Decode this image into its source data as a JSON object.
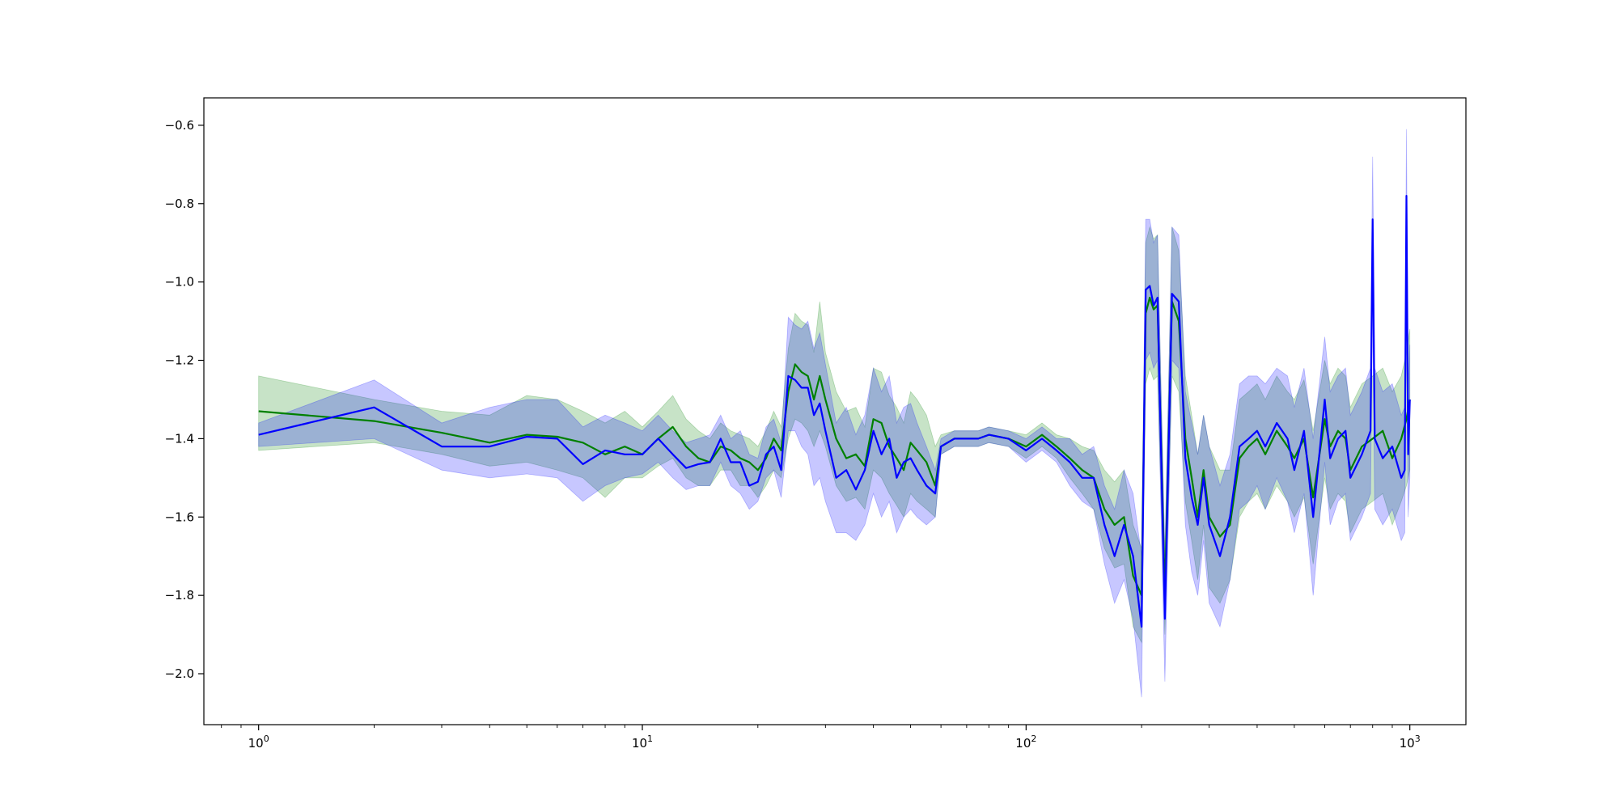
{
  "chart_data": {
    "type": "line",
    "title": "",
    "xlabel": "",
    "ylabel": "",
    "xscale": "log",
    "xlim": [
      0.72,
      1400
    ],
    "ylim": [
      -2.13,
      -0.53
    ],
    "grid": false,
    "legend": "none",
    "x_ticks": [
      {
        "value": 1,
        "base": "10",
        "exp": "0"
      },
      {
        "value": 10,
        "base": "10",
        "exp": "1"
      },
      {
        "value": 100,
        "base": "10",
        "exp": "2"
      },
      {
        "value": 1000,
        "base": "10",
        "exp": "3"
      }
    ],
    "y_ticks": [
      {
        "value": -0.6,
        "label": "−0.6"
      },
      {
        "value": -0.8,
        "label": "−0.8"
      },
      {
        "value": -1.0,
        "label": "−1.0"
      },
      {
        "value": -1.2,
        "label": "−1.2"
      },
      {
        "value": -1.4,
        "label": "−1.4"
      },
      {
        "value": -1.6,
        "label": "−1.6"
      },
      {
        "value": -1.8,
        "label": "−1.8"
      },
      {
        "value": -2.0,
        "label": "−2.0"
      }
    ],
    "series": [
      {
        "color": "#008000",
        "band_color": "#008000",
        "x": [
          1,
          2,
          3,
          4,
          5,
          6,
          7,
          8,
          9,
          10,
          11,
          12,
          13,
          14,
          15,
          16,
          17,
          18,
          19,
          20,
          21,
          22,
          23,
          24,
          25,
          26,
          27,
          28,
          29,
          30,
          32,
          34,
          36,
          38,
          40,
          42,
          44,
          46,
          48,
          50,
          52,
          55,
          58,
          60,
          65,
          70,
          75,
          80,
          90,
          100,
          110,
          120,
          130,
          140,
          150,
          160,
          170,
          180,
          190,
          200,
          205,
          210,
          215,
          220,
          230,
          240,
          250,
          260,
          270,
          280,
          290,
          300,
          320,
          340,
          360,
          380,
          400,
          420,
          450,
          480,
          500,
          530,
          560,
          600,
          620,
          650,
          680,
          700,
          750,
          800,
          850,
          900,
          950,
          980,
          1000
        ],
        "y": [
          -1.33,
          -1.355,
          -1.385,
          -1.41,
          -1.39,
          -1.395,
          -1.41,
          -1.44,
          -1.42,
          -1.44,
          -1.4,
          -1.37,
          -1.42,
          -1.45,
          -1.46,
          -1.42,
          -1.43,
          -1.45,
          -1.46,
          -1.48,
          -1.45,
          -1.4,
          -1.43,
          -1.28,
          -1.21,
          -1.23,
          -1.24,
          -1.3,
          -1.24,
          -1.3,
          -1.4,
          -1.45,
          -1.44,
          -1.47,
          -1.35,
          -1.36,
          -1.42,
          -1.45,
          -1.48,
          -1.41,
          -1.43,
          -1.46,
          -1.52,
          -1.42,
          -1.4,
          -1.4,
          -1.4,
          -1.39,
          -1.4,
          -1.42,
          -1.39,
          -1.42,
          -1.45,
          -1.48,
          -1.5,
          -1.58,
          -1.62,
          -1.6,
          -1.75,
          -1.8,
          -1.08,
          -1.04,
          -1.07,
          -1.06,
          -1.8,
          -1.05,
          -1.1,
          -1.4,
          -1.5,
          -1.6,
          -1.48,
          -1.6,
          -1.65,
          -1.62,
          -1.45,
          -1.42,
          -1.4,
          -1.44,
          -1.38,
          -1.42,
          -1.45,
          -1.4,
          -1.55,
          -1.35,
          -1.42,
          -1.38,
          -1.4,
          -1.48,
          -1.42,
          -1.4,
          -1.38,
          -1.45,
          -1.4,
          -1.35,
          -1.3
        ],
        "lower": [
          -1.43,
          -1.41,
          -1.44,
          -1.47,
          -1.46,
          -1.48,
          -1.5,
          -1.55,
          -1.5,
          -1.5,
          -1.47,
          -1.45,
          -1.5,
          -1.52,
          -1.52,
          -1.48,
          -1.48,
          -1.52,
          -1.52,
          -1.55,
          -1.52,
          -1.48,
          -1.5,
          -1.4,
          -1.35,
          -1.36,
          -1.38,
          -1.42,
          -1.38,
          -1.42,
          -1.52,
          -1.56,
          -1.55,
          -1.58,
          -1.48,
          -1.5,
          -1.54,
          -1.57,
          -1.6,
          -1.54,
          -1.56,
          -1.58,
          -1.6,
          -1.44,
          -1.42,
          -1.42,
          -1.42,
          -1.41,
          -1.42,
          -1.45,
          -1.42,
          -1.45,
          -1.5,
          -1.54,
          -1.58,
          -1.68,
          -1.73,
          -1.72,
          -1.88,
          -1.92,
          -1.26,
          -1.22,
          -1.25,
          -1.24,
          -1.9,
          -1.24,
          -1.28,
          -1.56,
          -1.66,
          -1.76,
          -1.62,
          -1.78,
          -1.82,
          -1.76,
          -1.6,
          -1.56,
          -1.54,
          -1.58,
          -1.52,
          -1.56,
          -1.6,
          -1.55,
          -1.72,
          -1.5,
          -1.58,
          -1.54,
          -1.56,
          -1.64,
          -1.58,
          -1.56,
          -1.54,
          -1.62,
          -1.56,
          -1.52,
          -1.48
        ],
        "upper": [
          -1.24,
          -1.3,
          -1.33,
          -1.34,
          -1.29,
          -1.3,
          -1.33,
          -1.36,
          -1.33,
          -1.37,
          -1.33,
          -1.29,
          -1.35,
          -1.38,
          -1.4,
          -1.36,
          -1.38,
          -1.39,
          -1.4,
          -1.42,
          -1.38,
          -1.33,
          -1.37,
          -1.17,
          -1.08,
          -1.1,
          -1.11,
          -1.18,
          -1.05,
          -1.18,
          -1.28,
          -1.33,
          -1.32,
          -1.37,
          -1.22,
          -1.23,
          -1.29,
          -1.32,
          -1.36,
          -1.28,
          -1.3,
          -1.34,
          -1.42,
          -1.39,
          -1.38,
          -1.38,
          -1.38,
          -1.37,
          -1.38,
          -1.39,
          -1.36,
          -1.39,
          -1.4,
          -1.42,
          -1.43,
          -1.48,
          -1.51,
          -1.48,
          -1.62,
          -1.68,
          -0.9,
          -0.86,
          -0.89,
          -0.88,
          -1.7,
          -0.86,
          -0.92,
          -1.24,
          -1.34,
          -1.44,
          -1.34,
          -1.42,
          -1.48,
          -1.48,
          -1.3,
          -1.28,
          -1.26,
          -1.3,
          -1.24,
          -1.28,
          -1.3,
          -1.25,
          -1.38,
          -1.2,
          -1.26,
          -1.22,
          -1.24,
          -1.32,
          -1.26,
          -1.24,
          -1.22,
          -1.28,
          -1.24,
          -1.18,
          -1.12
        ]
      },
      {
        "color": "#0000ff",
        "band_color": "#0000ff",
        "x": [
          1,
          2,
          3,
          4,
          5,
          6,
          7,
          8,
          9,
          10,
          11,
          12,
          13,
          14,
          15,
          16,
          17,
          18,
          19,
          20,
          21,
          22,
          23,
          24,
          25,
          26,
          27,
          28,
          29,
          30,
          32,
          34,
          36,
          38,
          40,
          42,
          44,
          46,
          48,
          50,
          52,
          55,
          58,
          60,
          65,
          70,
          75,
          80,
          90,
          100,
          110,
          120,
          130,
          140,
          150,
          160,
          170,
          180,
          190,
          200,
          205,
          210,
          215,
          220,
          230,
          240,
          250,
          260,
          270,
          280,
          290,
          300,
          320,
          340,
          360,
          380,
          400,
          420,
          450,
          480,
          500,
          530,
          560,
          600,
          620,
          650,
          680,
          700,
          750,
          790,
          800,
          810,
          850,
          900,
          950,
          970,
          980,
          990,
          1000
        ],
        "y": [
          -1.39,
          -1.32,
          -1.42,
          -1.42,
          -1.395,
          -1.4,
          -1.465,
          -1.43,
          -1.44,
          -1.44,
          -1.4,
          -1.44,
          -1.475,
          -1.465,
          -1.46,
          -1.4,
          -1.46,
          -1.46,
          -1.52,
          -1.51,
          -1.44,
          -1.42,
          -1.48,
          -1.24,
          -1.25,
          -1.27,
          -1.27,
          -1.34,
          -1.31,
          -1.38,
          -1.5,
          -1.48,
          -1.53,
          -1.48,
          -1.38,
          -1.44,
          -1.4,
          -1.5,
          -1.46,
          -1.45,
          -1.48,
          -1.52,
          -1.54,
          -1.42,
          -1.4,
          -1.4,
          -1.4,
          -1.39,
          -1.4,
          -1.43,
          -1.4,
          -1.43,
          -1.46,
          -1.5,
          -1.5,
          -1.62,
          -1.7,
          -1.62,
          -1.7,
          -1.88,
          -1.02,
          -1.01,
          -1.06,
          -1.04,
          -1.86,
          -1.03,
          -1.05,
          -1.45,
          -1.55,
          -1.62,
          -1.5,
          -1.62,
          -1.7,
          -1.6,
          -1.42,
          -1.4,
          -1.38,
          -1.42,
          -1.36,
          -1.4,
          -1.48,
          -1.38,
          -1.6,
          -1.3,
          -1.45,
          -1.4,
          -1.38,
          -1.5,
          -1.44,
          -1.38,
          -0.84,
          -1.4,
          -1.45,
          -1.42,
          -1.5,
          -1.48,
          -0.78,
          -1.44,
          -1.3
        ],
        "lower": [
          -1.42,
          -1.4,
          -1.48,
          -1.5,
          -1.49,
          -1.5,
          -1.56,
          -1.52,
          -1.5,
          -1.49,
          -1.46,
          -1.5,
          -1.53,
          -1.52,
          -1.52,
          -1.46,
          -1.52,
          -1.54,
          -1.58,
          -1.56,
          -1.5,
          -1.48,
          -1.55,
          -1.38,
          -1.38,
          -1.42,
          -1.44,
          -1.52,
          -1.5,
          -1.56,
          -1.64,
          -1.64,
          -1.66,
          -1.62,
          -1.54,
          -1.6,
          -1.56,
          -1.64,
          -1.6,
          -1.58,
          -1.6,
          -1.62,
          -1.6,
          -1.44,
          -1.42,
          -1.42,
          -1.42,
          -1.41,
          -1.42,
          -1.46,
          -1.43,
          -1.46,
          -1.52,
          -1.56,
          -1.58,
          -1.72,
          -1.82,
          -1.76,
          -1.86,
          -2.06,
          -1.2,
          -1.18,
          -1.22,
          -1.2,
          -2.02,
          -1.2,
          -1.22,
          -1.62,
          -1.74,
          -1.8,
          -1.66,
          -1.82,
          -1.88,
          -1.76,
          -1.58,
          -1.56,
          -1.52,
          -1.58,
          -1.5,
          -1.56,
          -1.64,
          -1.54,
          -1.8,
          -1.46,
          -1.62,
          -1.56,
          -1.54,
          -1.66,
          -1.6,
          -1.54,
          -1.06,
          -1.58,
          -1.62,
          -1.58,
          -1.66,
          -1.64,
          -1.0,
          -1.6,
          -1.5
        ],
        "upper": [
          -1.36,
          -1.25,
          -1.36,
          -1.32,
          -1.3,
          -1.3,
          -1.37,
          -1.34,
          -1.36,
          -1.38,
          -1.34,
          -1.38,
          -1.41,
          -1.4,
          -1.39,
          -1.34,
          -1.4,
          -1.38,
          -1.44,
          -1.45,
          -1.37,
          -1.35,
          -1.41,
          -1.09,
          -1.11,
          -1.12,
          -1.1,
          -1.17,
          -1.13,
          -1.21,
          -1.36,
          -1.32,
          -1.39,
          -1.34,
          -1.22,
          -1.28,
          -1.24,
          -1.36,
          -1.32,
          -1.31,
          -1.36,
          -1.42,
          -1.48,
          -1.4,
          -1.38,
          -1.38,
          -1.38,
          -1.37,
          -1.38,
          -1.4,
          -1.37,
          -1.4,
          -1.4,
          -1.44,
          -1.42,
          -1.52,
          -1.58,
          -1.48,
          -1.54,
          -1.7,
          -0.84,
          -0.84,
          -0.9,
          -0.88,
          -1.7,
          -0.86,
          -0.88,
          -1.28,
          -1.36,
          -1.44,
          -1.34,
          -1.42,
          -1.52,
          -1.44,
          -1.26,
          -1.24,
          -1.24,
          -1.26,
          -1.22,
          -1.24,
          -1.32,
          -1.22,
          -1.4,
          -1.14,
          -1.28,
          -1.24,
          -1.22,
          -1.34,
          -1.28,
          -1.22,
          -0.68,
          -1.22,
          -1.28,
          -1.26,
          -1.34,
          -1.32,
          -0.61,
          -1.28,
          -1.16
        ]
      }
    ]
  }
}
